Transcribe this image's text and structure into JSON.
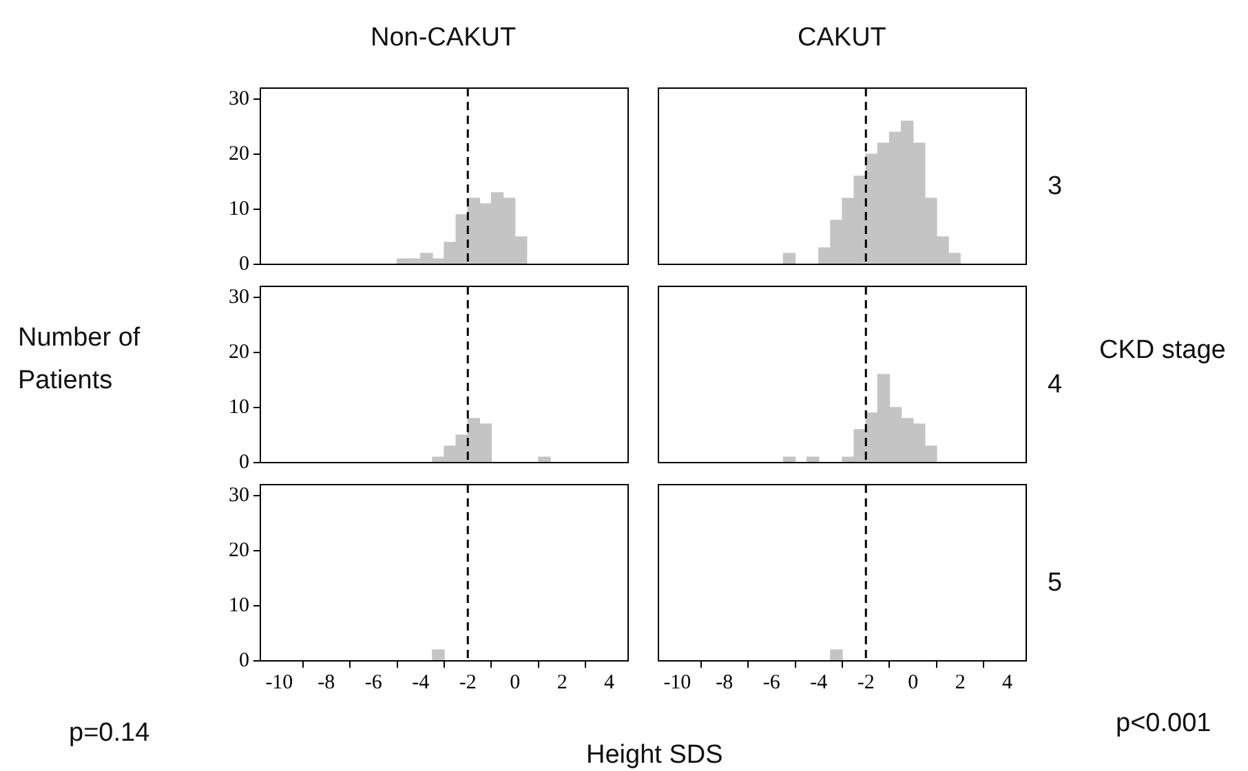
{
  "chart_data": [
    {
      "type": "histogram",
      "title": "Non-CAKUT",
      "color": "#c4c4c4",
      "bins": [
        -5,
        -4.5,
        -4,
        -3.5,
        -3,
        -2.5,
        -2,
        -1.5,
        -1,
        -0.5,
        0,
        0.5
      ],
      "values": [
        1,
        1,
        2,
        1,
        4,
        9,
        12,
        11,
        13,
        12,
        5
      ],
      "xlim": [
        -10.8,
        4.8
      ],
      "ylim": [
        0,
        32
      ],
      "xticks": [
        -10,
        -8,
        -6,
        -4,
        -2,
        0,
        2,
        4
      ],
      "yticks": [
        0,
        10,
        20,
        30
      ],
      "ref_lines": [
        {
          "axis": "x",
          "value": -2,
          "line_style": "dashed"
        }
      ],
      "tick_labels": "y",
      "grid": false,
      "legend": false
    },
    {
      "type": "histogram",
      "title": "CAKUT",
      "annotations": [
        "3"
      ],
      "color": "#c4c4c4",
      "bins": [
        -5.5,
        -5,
        -4.5,
        -4,
        -3.5,
        -3,
        -2.5,
        -2,
        -1.5,
        -1,
        -0.5,
        0,
        0.5,
        1,
        1.5,
        2
      ],
      "values": [
        2,
        0,
        0,
        3,
        8,
        12,
        16,
        20,
        22,
        24,
        26,
        22,
        12,
        5,
        2
      ],
      "xlim": [
        -10.8,
        4.8
      ],
      "ylim": [
        0,
        32
      ],
      "xticks": [
        -10,
        -8,
        -6,
        -4,
        -2,
        0,
        2,
        4
      ],
      "yticks": [
        0,
        10,
        20,
        30
      ],
      "ref_lines": [
        {
          "axis": "x",
          "value": -2,
          "line_style": "dashed"
        }
      ],
      "tick_labels": false,
      "grid": false,
      "legend": false
    },
    {
      "type": "histogram",
      "ylabel": "Number of Patients",
      "color": "#c4c4c4",
      "bins": [
        -3.5,
        -3,
        -2.5,
        -2,
        -1.5,
        -1,
        -0.5,
        0,
        0.5,
        1,
        1.5
      ],
      "values": [
        1,
        3,
        5,
        8,
        7,
        0,
        0,
        0,
        0,
        1
      ],
      "xlim": [
        -10.8,
        4.8
      ],
      "ylim": [
        0,
        32
      ],
      "xticks": [
        -10,
        -8,
        -6,
        -4,
        -2,
        0,
        2,
        4
      ],
      "yticks": [
        0,
        10,
        20,
        30
      ],
      "ref_lines": [
        {
          "axis": "x",
          "value": -2,
          "line_style": "dashed"
        }
      ],
      "tick_labels": "y",
      "grid": false,
      "legend": false
    },
    {
      "type": "histogram",
      "y2label": "CKD stage",
      "annotations": [
        "4"
      ],
      "color": "#c4c4c4",
      "bins": [
        -5.5,
        -5,
        -4.5,
        -4,
        -3.5,
        -3,
        -2.5,
        -2,
        -1.5,
        -1,
        -0.5,
        0,
        0.5,
        1
      ],
      "values": [
        1,
        0,
        1,
        0,
        0,
        1,
        6,
        9,
        16,
        10,
        8,
        7,
        3
      ],
      "xlim": [
        -10.8,
        4.8
      ],
      "ylim": [
        0,
        32
      ],
      "xticks": [
        -10,
        -8,
        -6,
        -4,
        -2,
        0,
        2,
        4
      ],
      "yticks": [
        0,
        10,
        20,
        30
      ],
      "ref_lines": [
        {
          "axis": "x",
          "value": -2,
          "line_style": "dashed"
        }
      ],
      "tick_labels": false,
      "grid": false,
      "legend": false
    },
    {
      "type": "histogram",
      "xlabel": "Height SDS",
      "annotations": [
        "p=0.14"
      ],
      "color": "#c4c4c4",
      "bins": [
        -3.5,
        -3
      ],
      "values": [
        2
      ],
      "xlim": [
        -10.8,
        4.8
      ],
      "ylim": [
        0,
        32
      ],
      "xticks": [
        -10,
        -8,
        -6,
        -4,
        -2,
        0,
        2,
        4
      ],
      "yticks": [
        0,
        10,
        20,
        30
      ],
      "ref_lines": [
        {
          "axis": "x",
          "value": -2,
          "line_style": "dashed"
        }
      ],
      "grid": false,
      "legend": false
    },
    {
      "type": "histogram",
      "annotations": [
        "5",
        "p<0.001"
      ],
      "color": "#c4c4c4",
      "bins": [
        -3.5,
        -3
      ],
      "values": [
        2
      ],
      "xlim": [
        -10.8,
        4.8
      ],
      "ylim": [
        0,
        32
      ],
      "xticks": [
        -10,
        -8,
        -6,
        -4,
        -2,
        0,
        2,
        4
      ],
      "yticks": [
        0,
        10,
        20,
        30
      ],
      "ref_lines": [
        {
          "axis": "x",
          "value": -2,
          "line_style": "dashed"
        }
      ],
      "tick_labels": "x",
      "grid": false,
      "legend": false
    }
  ]
}
